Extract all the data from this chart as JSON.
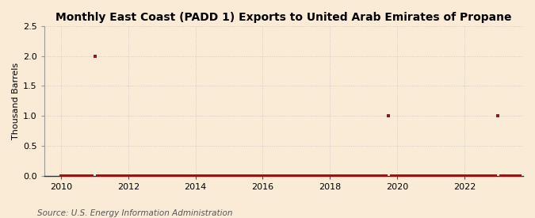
{
  "title": "Monthly East Coast (PADD 1) Exports to United Arab Emirates of Propane",
  "ylabel": "Thousand Barrels",
  "source": "Source: U.S. Energy Information Administration",
  "background_color": "#faebd7",
  "plot_background_color": "#faebd7",
  "marker_color": "#8b1a1a",
  "marker_size": 3,
  "marker_style": "s",
  "ylim": [
    0,
    2.5
  ],
  "yticks": [
    0.0,
    0.5,
    1.0,
    1.5,
    2.0,
    2.5
  ],
  "xlim_start": 2009.5,
  "xlim_end": 2023.75,
  "xticks": [
    2010,
    2012,
    2014,
    2016,
    2018,
    2020,
    2022
  ],
  "data_points": [
    [
      2010.0,
      0.0
    ],
    [
      2010.083,
      0.0
    ],
    [
      2010.167,
      0.0
    ],
    [
      2010.25,
      0.0
    ],
    [
      2010.333,
      0.0
    ],
    [
      2010.417,
      0.0
    ],
    [
      2010.5,
      0.0
    ],
    [
      2010.583,
      0.0
    ],
    [
      2010.667,
      0.0
    ],
    [
      2010.75,
      0.0
    ],
    [
      2010.833,
      0.0
    ],
    [
      2010.917,
      0.0
    ],
    [
      2011.0,
      2.0
    ],
    [
      2011.083,
      0.0
    ],
    [
      2011.167,
      0.0
    ],
    [
      2011.25,
      0.0
    ],
    [
      2011.333,
      0.0
    ],
    [
      2011.417,
      0.0
    ],
    [
      2011.5,
      0.0
    ],
    [
      2011.583,
      0.0
    ],
    [
      2011.667,
      0.0
    ],
    [
      2011.75,
      0.0
    ],
    [
      2011.833,
      0.0
    ],
    [
      2011.917,
      0.0
    ],
    [
      2012.0,
      0.0
    ],
    [
      2012.083,
      0.0
    ],
    [
      2012.167,
      0.0
    ],
    [
      2012.25,
      0.0
    ],
    [
      2012.333,
      0.0
    ],
    [
      2012.417,
      0.0
    ],
    [
      2012.5,
      0.0
    ],
    [
      2012.583,
      0.0
    ],
    [
      2012.667,
      0.0
    ],
    [
      2012.75,
      0.0
    ],
    [
      2012.833,
      0.0
    ],
    [
      2012.917,
      0.0
    ],
    [
      2013.0,
      0.0
    ],
    [
      2013.083,
      0.0
    ],
    [
      2013.167,
      0.0
    ],
    [
      2013.25,
      0.0
    ],
    [
      2013.333,
      0.0
    ],
    [
      2013.417,
      0.0
    ],
    [
      2013.5,
      0.0
    ],
    [
      2013.583,
      0.0
    ],
    [
      2013.667,
      0.0
    ],
    [
      2013.75,
      0.0
    ],
    [
      2013.833,
      0.0
    ],
    [
      2013.917,
      0.0
    ],
    [
      2014.0,
      0.0
    ],
    [
      2014.083,
      0.0
    ],
    [
      2014.167,
      0.0
    ],
    [
      2014.25,
      0.0
    ],
    [
      2014.333,
      0.0
    ],
    [
      2014.417,
      0.0
    ],
    [
      2014.5,
      0.0
    ],
    [
      2014.583,
      0.0
    ],
    [
      2014.667,
      0.0
    ],
    [
      2014.75,
      0.0
    ],
    [
      2014.833,
      0.0
    ],
    [
      2014.917,
      0.0
    ],
    [
      2015.0,
      0.0
    ],
    [
      2015.083,
      0.0
    ],
    [
      2015.167,
      0.0
    ],
    [
      2015.25,
      0.0
    ],
    [
      2015.333,
      0.0
    ],
    [
      2015.417,
      0.0
    ],
    [
      2015.5,
      0.0
    ],
    [
      2015.583,
      0.0
    ],
    [
      2015.667,
      0.0
    ],
    [
      2015.75,
      0.0
    ],
    [
      2015.833,
      0.0
    ],
    [
      2015.917,
      0.0
    ],
    [
      2016.0,
      0.0
    ],
    [
      2016.083,
      0.0
    ],
    [
      2016.167,
      0.0
    ],
    [
      2016.25,
      0.0
    ],
    [
      2016.333,
      0.0
    ],
    [
      2016.417,
      0.0
    ],
    [
      2016.5,
      0.0
    ],
    [
      2016.583,
      0.0
    ],
    [
      2016.667,
      0.0
    ],
    [
      2016.75,
      0.0
    ],
    [
      2016.833,
      0.0
    ],
    [
      2016.917,
      0.0
    ],
    [
      2017.0,
      0.0
    ],
    [
      2017.083,
      0.0
    ],
    [
      2017.167,
      0.0
    ],
    [
      2017.25,
      0.0
    ],
    [
      2017.333,
      0.0
    ],
    [
      2017.417,
      0.0
    ],
    [
      2017.5,
      0.0
    ],
    [
      2017.583,
      0.0
    ],
    [
      2017.667,
      0.0
    ],
    [
      2017.75,
      0.0
    ],
    [
      2017.833,
      0.0
    ],
    [
      2017.917,
      0.0
    ],
    [
      2018.0,
      0.0
    ],
    [
      2018.083,
      0.0
    ],
    [
      2018.167,
      0.0
    ],
    [
      2018.25,
      0.0
    ],
    [
      2018.333,
      0.0
    ],
    [
      2018.417,
      0.0
    ],
    [
      2018.5,
      0.0
    ],
    [
      2018.583,
      0.0
    ],
    [
      2018.667,
      0.0
    ],
    [
      2018.75,
      0.0
    ],
    [
      2018.833,
      0.0
    ],
    [
      2018.917,
      0.0
    ],
    [
      2019.0,
      0.0
    ],
    [
      2019.083,
      0.0
    ],
    [
      2019.167,
      0.0
    ],
    [
      2019.25,
      0.0
    ],
    [
      2019.333,
      0.0
    ],
    [
      2019.417,
      0.0
    ],
    [
      2019.5,
      0.0
    ],
    [
      2019.583,
      0.0
    ],
    [
      2019.667,
      0.0
    ],
    [
      2019.75,
      1.0
    ],
    [
      2019.833,
      0.0
    ],
    [
      2019.917,
      0.0
    ],
    [
      2020.0,
      0.0
    ],
    [
      2020.083,
      0.0
    ],
    [
      2020.167,
      0.0
    ],
    [
      2020.25,
      0.0
    ],
    [
      2020.333,
      0.0
    ],
    [
      2020.417,
      0.0
    ],
    [
      2020.5,
      0.0
    ],
    [
      2020.583,
      0.0
    ],
    [
      2020.667,
      0.0
    ],
    [
      2020.75,
      0.0
    ],
    [
      2020.833,
      0.0
    ],
    [
      2020.917,
      0.0
    ],
    [
      2021.0,
      0.0
    ],
    [
      2021.083,
      0.0
    ],
    [
      2021.167,
      0.0
    ],
    [
      2021.25,
      0.0
    ],
    [
      2021.333,
      0.0
    ],
    [
      2021.417,
      0.0
    ],
    [
      2021.5,
      0.0
    ],
    [
      2021.583,
      0.0
    ],
    [
      2021.667,
      0.0
    ],
    [
      2021.75,
      0.0
    ],
    [
      2021.833,
      0.0
    ],
    [
      2021.917,
      0.0
    ],
    [
      2022.0,
      0.0
    ],
    [
      2022.083,
      0.0
    ],
    [
      2022.167,
      0.0
    ],
    [
      2022.25,
      0.0
    ],
    [
      2022.333,
      0.0
    ],
    [
      2022.417,
      0.0
    ],
    [
      2022.5,
      0.0
    ],
    [
      2022.583,
      0.0
    ],
    [
      2022.667,
      0.0
    ],
    [
      2022.75,
      0.0
    ],
    [
      2022.833,
      0.0
    ],
    [
      2022.917,
      0.0
    ],
    [
      2023.0,
      1.0
    ],
    [
      2023.083,
      0.0
    ],
    [
      2023.167,
      0.0
    ],
    [
      2023.25,
      0.0
    ],
    [
      2023.333,
      0.0
    ],
    [
      2023.417,
      0.0
    ],
    [
      2023.5,
      0.0
    ],
    [
      2023.583,
      0.0
    ],
    [
      2023.667,
      0.0
    ]
  ],
  "nonzero_small_points": [
    [
      2010.0,
      0.0
    ],
    [
      2010.083,
      0.0
    ],
    [
      2011.833,
      0.0
    ],
    [
      2012.833,
      0.0
    ],
    [
      2013.167,
      0.0
    ],
    [
      2013.333,
      0.0
    ],
    [
      2013.417,
      0.0
    ],
    [
      2013.5,
      0.0
    ],
    [
      2013.583,
      0.0
    ],
    [
      2013.667,
      0.0
    ],
    [
      2013.75,
      0.0
    ],
    [
      2013.833,
      0.0
    ],
    [
      2013.917,
      0.0
    ],
    [
      2014.0,
      0.0
    ],
    [
      2014.083,
      0.0
    ],
    [
      2014.167,
      0.0
    ],
    [
      2014.25,
      0.0
    ],
    [
      2014.333,
      0.0
    ],
    [
      2014.417,
      0.0
    ],
    [
      2014.583,
      0.0
    ],
    [
      2015.0,
      0.0
    ],
    [
      2015.083,
      0.0
    ],
    [
      2016.75,
      0.0
    ],
    [
      2016.833,
      0.0
    ],
    [
      2017.417,
      0.0
    ],
    [
      2018.5,
      0.0
    ],
    [
      2018.667,
      0.0
    ],
    [
      2018.75,
      0.0
    ],
    [
      2019.0,
      0.0
    ],
    [
      2019.083,
      0.0
    ],
    [
      2019.25,
      0.0
    ],
    [
      2020.083,
      0.0
    ],
    [
      2020.25,
      0.0
    ],
    [
      2023.5,
      0.0
    ]
  ],
  "grid_color": "#bbbbbb",
  "grid_style": ":",
  "grid_alpha": 0.8,
  "title_fontsize": 10,
  "ylabel_fontsize": 8,
  "source_fontsize": 7.5
}
